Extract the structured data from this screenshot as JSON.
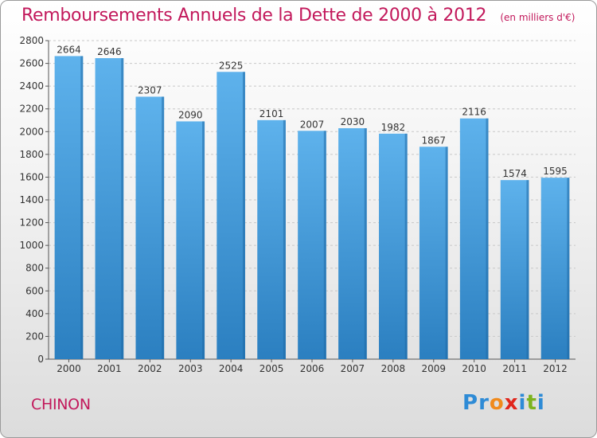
{
  "header": {
    "title": "Remboursements Annuels de la Dette de 2000 à 2012",
    "unit": "(en milliers d'€)"
  },
  "footer": {
    "city": "CHINON",
    "brand": "Proxiti",
    "brand_letter_colors": [
      "#2e8bd6",
      "#2e8bd6",
      "#f08a1c",
      "#e0261c",
      "#2e8bd6",
      "#7cb31e",
      "#2e8bd6"
    ]
  },
  "colors": {
    "title": "#c2185b",
    "bar_light": "#5eb2ec",
    "bar_dark": "#2b7fc0",
    "bar_side": "#1f6aa6",
    "grid": "#c8c8c8",
    "axis": "#555555"
  },
  "chart_data": {
    "type": "bar",
    "categories": [
      "2000",
      "2001",
      "2002",
      "2003",
      "2004",
      "2005",
      "2006",
      "2007",
      "2008",
      "2009",
      "2010",
      "2011",
      "2012"
    ],
    "values": [
      2664,
      2646,
      2307,
      2090,
      2525,
      2101,
      2007,
      2030,
      1982,
      1867,
      2116,
      1574,
      1595
    ],
    "ylim": [
      0,
      2800
    ],
    "y_ticks": [
      0,
      200,
      400,
      600,
      800,
      1000,
      1200,
      1400,
      1600,
      1800,
      2000,
      2200,
      2400,
      2600,
      2800
    ],
    "grid": true
  }
}
